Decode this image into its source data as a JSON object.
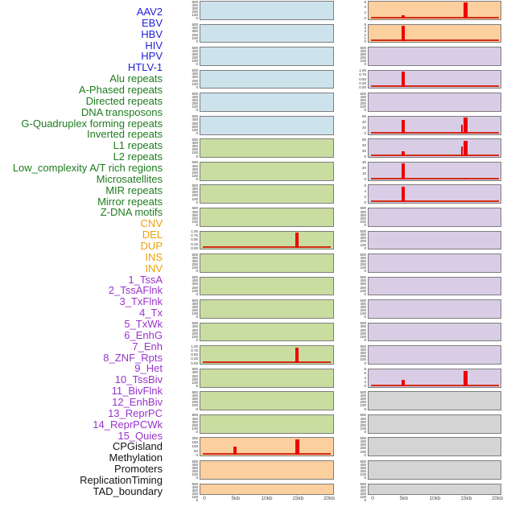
{
  "groups": {
    "virus": {
      "label_color": "#2121d6",
      "panel_fill": "#cde3ec"
    },
    "repeat": {
      "label_color": "#1e7c1e",
      "panel_fill": "#c9dda0"
    },
    "structural_variant": {
      "label_color": "#f0a000",
      "panel_fill": "#fbcf9e"
    },
    "chromatin_state": {
      "label_color": "#9933cc",
      "panel_fill": "#d9cde6"
    },
    "other": {
      "label_color": "#141414",
      "panel_fill": "#d4d4d4"
    }
  },
  "colors": {
    "spike_red": "#ee0000",
    "baseline_red": "#d22d16",
    "panel_border": "#7d7d7d",
    "tick_text": "#333333",
    "axis_text": "#4d4d4d"
  },
  "chart_data": {
    "type": "bar",
    "layout": "small_multiples_2_columns_x_22_rows",
    "x_tick_labels": [
      "0",
      "5kb",
      "10kb",
      "15kb",
      "20kb"
    ],
    "x_range_kb": [
      0,
      20
    ],
    "grid": false,
    "tracks": [
      {
        "label": "AAV2",
        "group": "virus",
        "column": "left",
        "row": 1,
        "y_ticks": [
          "500",
          "400",
          "300",
          "200",
          "100",
          "0"
        ],
        "spikes": [],
        "baseline": false
      },
      {
        "label": "EBV",
        "group": "virus",
        "column": "left",
        "row": 2,
        "y_ticks": [
          "500",
          "400",
          "300",
          "200",
          "100",
          "0"
        ],
        "spikes": [],
        "baseline": false
      },
      {
        "label": "HBV",
        "group": "virus",
        "column": "left",
        "row": 3,
        "y_ticks": [
          "500",
          "400",
          "300",
          "200",
          "100",
          "0"
        ],
        "spikes": [],
        "baseline": false
      },
      {
        "label": "HIV",
        "group": "virus",
        "column": "left",
        "row": 4,
        "y_ticks": [
          "500",
          "400",
          "300",
          "200",
          "100",
          "0"
        ],
        "spikes": [],
        "baseline": false
      },
      {
        "label": "HPV",
        "group": "virus",
        "column": "left",
        "row": 5,
        "y_ticks": [
          "500",
          "400",
          "300",
          "200",
          "100",
          "0"
        ],
        "spikes": [],
        "baseline": false
      },
      {
        "label": "HTLV-1",
        "group": "virus",
        "column": "left",
        "row": 6,
        "y_ticks": [
          "500",
          "400",
          "300",
          "200",
          "100",
          "0"
        ],
        "spikes": [],
        "baseline": false
      },
      {
        "label": "Alu repeats",
        "group": "repeat",
        "column": "left",
        "row": 7,
        "y_ticks": [
          "500",
          "400",
          "300",
          "200",
          "100",
          "0"
        ],
        "spikes": [],
        "baseline": false
      },
      {
        "label": "A-Phased repeats",
        "group": "repeat",
        "column": "left",
        "row": 8,
        "y_ticks": [
          "500",
          "400",
          "300",
          "200",
          "100",
          "0"
        ],
        "spikes": [],
        "baseline": false
      },
      {
        "label": "Directed repeats",
        "group": "repeat",
        "column": "left",
        "row": 9,
        "y_ticks": [
          "500",
          "400",
          "300",
          "200",
          "100",
          "0"
        ],
        "spikes": [],
        "baseline": false
      },
      {
        "label": "DNA transposons",
        "group": "repeat",
        "column": "left",
        "row": 10,
        "y_ticks": [
          "500",
          "400",
          "300",
          "200",
          "100",
          "0"
        ],
        "spikes": [],
        "baseline": false
      },
      {
        "label": "G-Quadruplex forming repeats",
        "group": "repeat",
        "column": "left",
        "row": 11,
        "y_ticks": [
          "1.00",
          "0.75",
          "0.50",
          "0.25",
          "0.00"
        ],
        "spikes": [
          {
            "x_kb": 15,
            "frac": 0.97,
            "value": 1.0,
            "w": 4
          }
        ],
        "baseline": true
      },
      {
        "label": "Inverted repeats",
        "group": "repeat",
        "column": "left",
        "row": 12,
        "y_ticks": [
          "500",
          "400",
          "300",
          "200",
          "100",
          "0"
        ],
        "spikes": [],
        "baseline": false
      },
      {
        "label": "L1 repeats",
        "group": "repeat",
        "column": "left",
        "row": 13,
        "y_ticks": [
          "500",
          "400",
          "300",
          "200",
          "100",
          "0"
        ],
        "spikes": [],
        "baseline": false
      },
      {
        "label": "L2 repeats",
        "group": "repeat",
        "column": "left",
        "row": 14,
        "y_ticks": [
          "500",
          "400",
          "300",
          "200",
          "100",
          "0"
        ],
        "spikes": [],
        "baseline": false
      },
      {
        "label": "Low_complexity A/T rich regions",
        "group": "repeat",
        "column": "left",
        "row": 15,
        "y_ticks": [
          "500",
          "400",
          "300",
          "200",
          "100",
          "0"
        ],
        "spikes": [],
        "baseline": false
      },
      {
        "label": "Microsatellites",
        "group": "repeat",
        "column": "left",
        "row": 16,
        "y_ticks": [
          "1.00",
          "0.75",
          "0.50",
          "0.25",
          "0.00"
        ],
        "spikes": [
          {
            "x_kb": 15,
            "frac": 0.97,
            "value": 1.0,
            "w": 4
          }
        ],
        "baseline": true
      },
      {
        "label": "MIR repeats",
        "group": "repeat",
        "column": "left",
        "row": 17,
        "y_ticks": [
          "500",
          "400",
          "300",
          "200",
          "100",
          "0"
        ],
        "spikes": [],
        "baseline": false
      },
      {
        "label": "Mirror repeats",
        "group": "repeat",
        "column": "left",
        "row": 18,
        "y_ticks": [
          "500",
          "400",
          "300",
          "200",
          "100",
          "0"
        ],
        "spikes": [],
        "baseline": false
      },
      {
        "label": "Z-DNA motifs",
        "group": "repeat",
        "column": "left",
        "row": 19,
        "y_ticks": [
          "500",
          "400",
          "300",
          "200",
          "100",
          "0"
        ],
        "spikes": [],
        "baseline": false
      },
      {
        "label": "CNV",
        "group": "structural_variant",
        "column": "left",
        "row": 20,
        "y_ticks": [
          "200",
          "150",
          "100",
          "50",
          "0"
        ],
        "spikes": [
          {
            "x_kb": 5,
            "frac": 0.5,
            "value": 100,
            "w": 4
          },
          {
            "x_kb": 15,
            "frac": 0.98,
            "value": 200,
            "w": 5
          }
        ],
        "baseline": true
      },
      {
        "label": "DEL",
        "group": "structural_variant",
        "column": "left",
        "row": 21,
        "y_ticks": [
          "500",
          "400",
          "300",
          "200",
          "100",
          "0"
        ],
        "spikes": [],
        "baseline": false
      },
      {
        "label": "DUP",
        "group": "structural_variant",
        "column": "left",
        "row": 22,
        "y_ticks": [
          "500",
          "400",
          "300",
          "200",
          "100",
          "0"
        ],
        "spikes": [],
        "baseline": false
      },
      {
        "label": "INS",
        "group": "structural_variant",
        "column": "right",
        "row": 1,
        "y_ticks": [
          "6",
          "4",
          "2",
          "0"
        ],
        "spikes": [
          {
            "x_kb": 5,
            "frac": 0.18,
            "value": 1,
            "w": 4
          },
          {
            "x_kb": 15,
            "frac": 0.98,
            "value": 7,
            "w": 5
          }
        ],
        "baseline": true
      },
      {
        "label": "INV",
        "group": "structural_variant",
        "column": "right",
        "row": 2,
        "y_ticks": [
          "5",
          "4",
          "3",
          "2",
          "1",
          "0"
        ],
        "spikes": [
          {
            "x_kb": 5,
            "frac": 0.97,
            "value": 5.5,
            "w": 4
          }
        ],
        "baseline": true
      },
      {
        "label": "1_TssA",
        "group": "chromatin_state",
        "column": "right",
        "row": 3,
        "y_ticks": [
          "500",
          "400",
          "300",
          "200",
          "100",
          "0"
        ],
        "spikes": [],
        "baseline": false
      },
      {
        "label": "2_TssAFlnk",
        "group": "chromatin_state",
        "column": "right",
        "row": 4,
        "y_ticks": [
          "1.00",
          "0.75",
          "0.50",
          "0.25",
          "0.00"
        ],
        "spikes": [
          {
            "x_kb": 5,
            "frac": 0.97,
            "value": 1.0,
            "w": 4
          }
        ],
        "baseline": true
      },
      {
        "label": "3_TxFlnk",
        "group": "chromatin_state",
        "column": "right",
        "row": 5,
        "y_ticks": [
          "500",
          "400",
          "300",
          "200",
          "100",
          "0"
        ],
        "spikes": [],
        "baseline": false
      },
      {
        "label": "4_Tx",
        "group": "chromatin_state",
        "column": "right",
        "row": 6,
        "y_ticks": [
          "60",
          "40",
          "20",
          "0"
        ],
        "spikes": [
          {
            "x_kb": 5,
            "frac": 0.85,
            "value": 62,
            "w": 4
          },
          {
            "x_kb": 14.5,
            "frac": 0.55,
            "value": 38,
            "w": 2
          },
          {
            "x_kb": 15,
            "frac": 0.98,
            "value": 70,
            "w": 5
          }
        ],
        "baseline": true
      },
      {
        "label": "5_TxWk",
        "group": "chromatin_state",
        "column": "right",
        "row": 7,
        "y_ticks": [
          "60",
          "40",
          "20",
          "0"
        ],
        "spikes": [
          {
            "x_kb": 5,
            "frac": 0.32,
            "value": 22,
            "w": 4
          },
          {
            "x_kb": 14.5,
            "frac": 0.6,
            "value": 40,
            "w": 2
          },
          {
            "x_kb": 15,
            "frac": 0.96,
            "value": 66,
            "w": 5
          }
        ],
        "baseline": true
      },
      {
        "label": "6_EnhG",
        "group": "chromatin_state",
        "column": "right",
        "row": 8,
        "y_ticks": [
          "30",
          "20",
          "10",
          "0"
        ],
        "spikes": [
          {
            "x_kb": 5,
            "frac": 0.97,
            "value": 33,
            "w": 4
          },
          {
            "x_kb": 15,
            "frac": 0.08,
            "value": 2,
            "w": 3
          }
        ],
        "baseline": true
      },
      {
        "label": "7_Enh",
        "group": "chromatin_state",
        "column": "right",
        "row": 9,
        "y_ticks": [
          "6",
          "4",
          "2",
          "0"
        ],
        "spikes": [
          {
            "x_kb": 5,
            "frac": 0.97,
            "value": 7,
            "w": 4
          }
        ],
        "baseline": true
      },
      {
        "label": "8_ZNF_Rpts",
        "group": "chromatin_state",
        "column": "right",
        "row": 10,
        "y_ticks": [
          "500",
          "400",
          "300",
          "200",
          "100",
          "0"
        ],
        "spikes": [],
        "baseline": false
      },
      {
        "label": "9_Het",
        "group": "chromatin_state",
        "column": "right",
        "row": 11,
        "y_ticks": [
          "500",
          "400",
          "300",
          "200",
          "100",
          "0"
        ],
        "spikes": [],
        "baseline": false
      },
      {
        "label": "10_TssBiv",
        "group": "chromatin_state",
        "column": "right",
        "row": 12,
        "y_ticks": [
          "500",
          "400",
          "300",
          "200",
          "100",
          "0"
        ],
        "spikes": [],
        "baseline": false
      },
      {
        "label": "11_BivFlnk",
        "group": "chromatin_state",
        "column": "right",
        "row": 13,
        "y_ticks": [
          "500",
          "400",
          "300",
          "200",
          "100",
          "0"
        ],
        "spikes": [],
        "baseline": false
      },
      {
        "label": "12_EnhBiv",
        "group": "chromatin_state",
        "column": "right",
        "row": 14,
        "y_ticks": [
          "500",
          "400",
          "300",
          "200",
          "100",
          "0"
        ],
        "spikes": [],
        "baseline": false
      },
      {
        "label": "13_ReprPC",
        "group": "chromatin_state",
        "column": "right",
        "row": 15,
        "y_ticks": [
          "500",
          "400",
          "300",
          "200",
          "100",
          "0"
        ],
        "spikes": [],
        "baseline": false
      },
      {
        "label": "14_ReprPCWk",
        "group": "chromatin_state",
        "column": "right",
        "row": 16,
        "y_ticks": [
          "500",
          "400",
          "300",
          "200",
          "100",
          "0"
        ],
        "spikes": [],
        "baseline": false
      },
      {
        "label": "15_Quies",
        "group": "chromatin_state",
        "column": "right",
        "row": 17,
        "y_ticks": [
          "8",
          "6",
          "4",
          "2",
          "0"
        ],
        "spikes": [
          {
            "x_kb": 5,
            "frac": 0.4,
            "value": 3.5,
            "w": 4
          },
          {
            "x_kb": 15,
            "frac": 0.95,
            "value": 8,
            "w": 5
          }
        ],
        "baseline": true
      },
      {
        "label": "CPGisland",
        "group": "other",
        "column": "right",
        "row": 18,
        "y_ticks": [
          "500",
          "400",
          "300",
          "200",
          "100",
          "0"
        ],
        "spikes": [],
        "baseline": false
      },
      {
        "label": "Methylation",
        "group": "other",
        "column": "right",
        "row": 19,
        "y_ticks": [
          "500",
          "400",
          "300",
          "200",
          "100",
          "0"
        ],
        "spikes": [],
        "baseline": false
      },
      {
        "label": "Promoters",
        "group": "other",
        "column": "right",
        "row": 20,
        "y_ticks": [
          "500",
          "400",
          "300",
          "200",
          "100",
          "0"
        ],
        "spikes": [],
        "baseline": false
      },
      {
        "label": "ReplicationTiming",
        "group": "other",
        "column": "right",
        "row": 21,
        "y_ticks": [
          "500",
          "400",
          "300",
          "200",
          "100",
          "0"
        ],
        "spikes": [],
        "baseline": false
      },
      {
        "label": "TAD_boundary",
        "group": "other",
        "column": "right",
        "row": 22,
        "y_ticks": [
          "500",
          "400",
          "300",
          "200",
          "100",
          "0"
        ],
        "spikes": [],
        "baseline": false
      }
    ]
  }
}
